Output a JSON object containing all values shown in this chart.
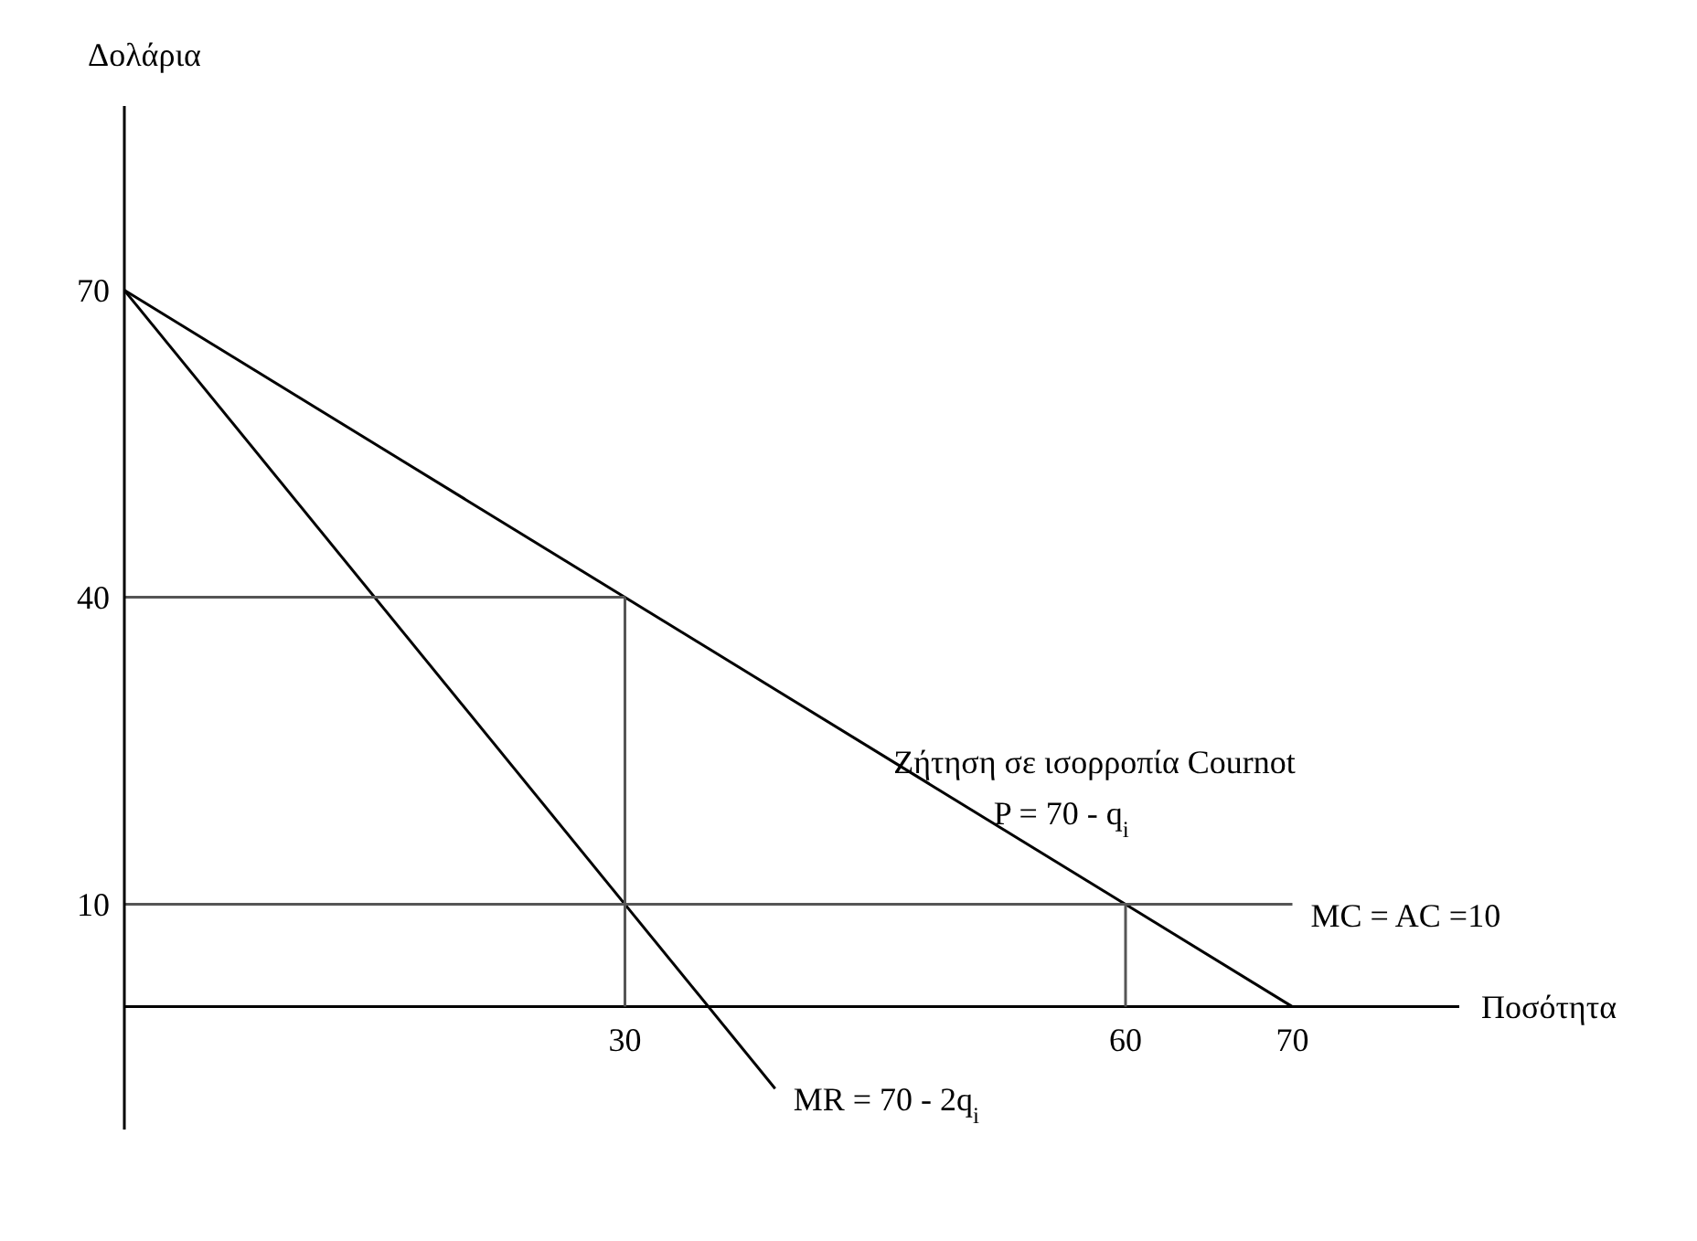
{
  "chart_data": {
    "type": "line",
    "ylabel": "Δολάρια",
    "xlabel": "Ποσότητα",
    "xlim": [
      0,
      80
    ],
    "ylim": [
      -12,
      88
    ],
    "xticks": [
      30,
      60,
      70
    ],
    "yticks": [
      10,
      40,
      70
    ],
    "marker": "none",
    "series": [
      {
        "x": [
          0,
          70
        ],
        "values": [
          70,
          0
        ],
        "color": "#000000"
      },
      {
        "x": [
          0,
          39
        ],
        "values": [
          70,
          -8
        ],
        "color": "#000000"
      },
      {
        "x": [
          0,
          70
        ],
        "values": [
          10,
          10
        ],
        "color": "#555555"
      },
      {
        "x": [
          0,
          30
        ],
        "values": [
          40,
          40
        ],
        "color": "#555555"
      },
      {
        "x": [
          30,
          30
        ],
        "values": [
          0,
          40
        ],
        "color": "#555555"
      },
      {
        "x": [
          60,
          60
        ],
        "values": [
          0,
          10
        ],
        "color": "#555555"
      }
    ],
    "ref_lines": [
      {
        "axis": "y",
        "value": 0,
        "color": "#000000"
      }
    ],
    "annotations": [
      {
        "text": "Ζήτηση σε ισορροπία Cournot",
        "x": 45,
        "y": 25
      },
      {
        "text": "P = 70 - q$_{i}$",
        "x": 51,
        "y": 20
      },
      {
        "text": "MC = AC =10",
        "x": 70,
        "y": 10
      },
      {
        "text": "MR = 70 - 2q$_{i}$",
        "x": 39,
        "y": -8
      }
    ]
  }
}
